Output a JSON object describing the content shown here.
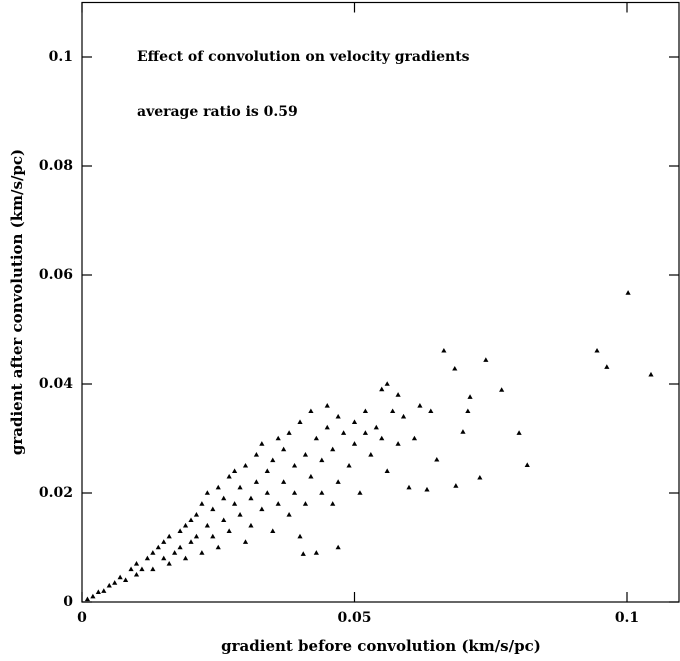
{
  "chart_data": {
    "type": "scatter",
    "x_label": "gradient before convolution (km/s/pc)",
    "y_label": "gradient after convolution (km/s/pc)",
    "annotations": [
      "Effect of convolution on velocity gradients",
      "average ratio is 0.59"
    ],
    "color": "#000000",
    "xlim": [
      0,
      0.11
    ],
    "ylim": [
      0,
      0.11
    ],
    "xticks": [
      0,
      0.05,
      0.1
    ],
    "yticks": [
      0,
      0.02,
      0.04,
      0.06,
      0.08,
      0.1
    ],
    "x": [
      0.001,
      0.002,
      0.003,
      0.004,
      0.005,
      0.006,
      0.007,
      0.008,
      0.009,
      0.01,
      0.01,
      0.011,
      0.012,
      0.013,
      0.013,
      0.014,
      0.015,
      0.015,
      0.016,
      0.016,
      0.017,
      0.018,
      0.018,
      0.019,
      0.019,
      0.02,
      0.02,
      0.021,
      0.021,
      0.022,
      0.022,
      0.023,
      0.023,
      0.024,
      0.024,
      0.025,
      0.025,
      0.026,
      0.026,
      0.027,
      0.027,
      0.028,
      0.028,
      0.029,
      0.029,
      0.03,
      0.03,
      0.031,
      0.031,
      0.032,
      0.032,
      0.033,
      0.033,
      0.034,
      0.034,
      0.035,
      0.035,
      0.036,
      0.036,
      0.037,
      0.037,
      0.038,
      0.038,
      0.039,
      0.039,
      0.04,
      0.04,
      0.041,
      0.041,
      0.042,
      0.042,
      0.043,
      0.043,
      0.044,
      0.044,
      0.045,
      0.045,
      0.046,
      0.046,
      0.047,
      0.047,
      0.047,
      0.048,
      0.049,
      0.05,
      0.05,
      0.051,
      0.052,
      0.052,
      0.053,
      0.054,
      0.055,
      0.055,
      0.056,
      0.056,
      0.057,
      0.058,
      0.058,
      0.059,
      0.06,
      0.061,
      0.062,
      0.064,
      0.0633,
      0.0651,
      0.0664,
      0.0684,
      0.0686,
      0.0699,
      0.0708,
      0.0712,
      0.073,
      0.0741,
      0.077,
      0.0802,
      0.0817,
      0.0945,
      0.0963,
      0.1002,
      0.1044,
      0.0406
    ],
    "values": [
      0.0005,
      0.001,
      0.0018,
      0.002,
      0.003,
      0.0035,
      0.0045,
      0.004,
      0.006,
      0.005,
      0.007,
      0.006,
      0.008,
      0.009,
      0.006,
      0.01,
      0.008,
      0.011,
      0.007,
      0.012,
      0.009,
      0.013,
      0.01,
      0.014,
      0.008,
      0.015,
      0.011,
      0.012,
      0.016,
      0.009,
      0.018,
      0.014,
      0.02,
      0.012,
      0.017,
      0.021,
      0.01,
      0.015,
      0.019,
      0.023,
      0.013,
      0.018,
      0.024,
      0.016,
      0.021,
      0.011,
      0.025,
      0.019,
      0.014,
      0.027,
      0.022,
      0.017,
      0.029,
      0.02,
      0.024,
      0.013,
      0.026,
      0.03,
      0.018,
      0.022,
      0.028,
      0.016,
      0.031,
      0.025,
      0.02,
      0.033,
      0.012,
      0.027,
      0.018,
      0.035,
      0.023,
      0.03,
      0.009,
      0.026,
      0.02,
      0.036,
      0.032,
      0.028,
      0.018,
      0.034,
      0.01,
      0.022,
      0.031,
      0.025,
      0.033,
      0.029,
      0.02,
      0.031,
      0.035,
      0.027,
      0.032,
      0.03,
      0.039,
      0.04,
      0.024,
      0.035,
      0.038,
      0.029,
      0.034,
      0.021,
      0.03,
      0.036,
      0.035,
      0.0206,
      0.0261,
      0.0461,
      0.0428,
      0.0213,
      0.0312,
      0.035,
      0.0376,
      0.0228,
      0.0444,
      0.0389,
      0.031,
      0.0251,
      0.0461,
      0.0431,
      0.0567,
      0.0417,
      0.0088
    ]
  }
}
